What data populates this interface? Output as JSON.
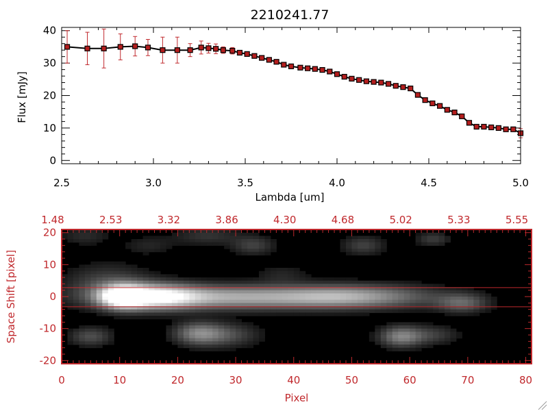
{
  "colors": {
    "red": "#c0282c",
    "black": "#000000",
    "marker_fill": "#b41e1e"
  },
  "chart_data": [
    {
      "type": "line",
      "title": "2210241.77",
      "xlabel": "Lambda [um]",
      "ylabel": "Flux [mJy]",
      "xlim": [
        2.5,
        5.0
      ],
      "ylim": [
        -1,
        41
      ],
      "x_ticks": [
        "2.5",
        "3.0",
        "3.5",
        "4.0",
        "4.5",
        "5.0"
      ],
      "x_tick_values": [
        2.5,
        3.0,
        3.5,
        4.0,
        4.5,
        5.0
      ],
      "y_ticks": [
        "0",
        "10",
        "20",
        "30",
        "40"
      ],
      "y_tick_values": [
        0,
        10,
        20,
        30,
        40
      ],
      "series": [
        {
          "x": [
            2.53,
            2.64,
            2.73,
            2.82,
            2.9,
            2.97,
            3.05,
            3.13,
            3.2,
            3.26,
            3.3,
            3.34,
            3.38,
            3.43,
            3.47,
            3.51,
            3.55,
            3.59,
            3.63,
            3.67,
            3.71,
            3.75,
            3.8,
            3.84,
            3.88,
            3.92,
            3.96,
            4.0,
            4.04,
            4.08,
            4.12,
            4.16,
            4.2,
            4.24,
            4.28,
            4.32,
            4.36,
            4.4,
            4.44,
            4.48,
            4.52,
            4.56,
            4.6,
            4.64,
            4.68,
            4.72,
            4.76,
            4.8,
            4.84,
            4.88,
            4.92,
            4.96,
            5.0
          ],
          "y": [
            35,
            34.5,
            34.5,
            35,
            35.2,
            34.8,
            34,
            34,
            34,
            34.8,
            34.6,
            34.4,
            34,
            33.8,
            33.2,
            32.8,
            32.2,
            31.6,
            31,
            30.4,
            29.5,
            29,
            28.6,
            28.4,
            28.2,
            27.9,
            27.4,
            26.6,
            25.8,
            25.2,
            24.8,
            24.4,
            24.2,
            24,
            23.6,
            23,
            22.6,
            22.2,
            20.2,
            18.6,
            17.6,
            16.8,
            15.6,
            14.8,
            13.6,
            11.6,
            10.4,
            10.4,
            10.2,
            10,
            9.6,
            9.6,
            8.4
          ],
          "yerr": [
            5,
            5,
            6,
            4,
            3,
            2.5,
            4,
            4,
            2,
            2,
            1.5,
            1.5,
            1,
            1,
            0.6,
            0.6,
            0.6,
            0.5,
            0.5,
            0.5,
            0.5,
            0.5,
            0.5,
            0.5,
            0.5,
            0.5,
            0.5,
            0.5,
            0.5,
            0.5,
            0.5,
            0.5,
            0.5,
            0.5,
            0.5,
            0.5,
            0.5,
            0.5,
            0.5,
            0.5,
            0.5,
            0.5,
            0.5,
            0.5,
            0.5,
            0.5,
            0.5,
            0.5,
            0.5,
            0.5,
            0.5,
            0.5,
            1.4
          ]
        }
      ]
    },
    {
      "type": "heatmap",
      "xlabel": "Pixel",
      "ylabel": "Space Shift [pixel]",
      "xlim": [
        0,
        81
      ],
      "ylim": [
        -21,
        21
      ],
      "x_ticks": [
        "0",
        "10",
        "20",
        "30",
        "40",
        "50",
        "60",
        "70",
        "80"
      ],
      "x_tick_values": [
        0,
        10,
        20,
        30,
        40,
        50,
        60,
        70,
        80
      ],
      "top_ticks": [
        "1.48",
        "2.53",
        "3.32",
        "3.86",
        "4.30",
        "4.68",
        "5.02",
        "5.33",
        "5.55"
      ],
      "y_ticks": [
        "20",
        "10",
        "0",
        "-10",
        "-20"
      ],
      "y_tick_values": [
        20,
        10,
        0,
        -10,
        -20
      ],
      "extraction_lines": [
        2.8,
        -3.2
      ],
      "blobs": [
        {
          "cx": 10.5,
          "cy": 0,
          "sx": 2.6,
          "sy": 2.4,
          "a": 1.0
        },
        {
          "cx": 16,
          "cy": 0,
          "sx": 5,
          "sy": 2.6,
          "a": 0.8
        },
        {
          "cx": 30,
          "cy": -0.2,
          "sx": 14,
          "sy": 2.5,
          "a": 0.62
        },
        {
          "cx": 48,
          "cy": 0,
          "sx": 7,
          "sy": 2.4,
          "a": 0.38
        },
        {
          "cx": 58,
          "cy": 0,
          "sx": 7,
          "sy": 2.5,
          "a": 0.18
        },
        {
          "cx": 69,
          "cy": -2,
          "sx": 3,
          "sy": 2,
          "a": 0.32
        },
        {
          "cx": 8,
          "cy": 4,
          "sx": 5,
          "sy": 4,
          "a": 0.22
        },
        {
          "cx": 5,
          "cy": -12.5,
          "sx": 2.5,
          "sy": 2,
          "a": 0.25
        },
        {
          "cx": 23.5,
          "cy": -11.5,
          "sx": 2.8,
          "sy": 2.4,
          "a": 0.38
        },
        {
          "cx": 28,
          "cy": -12,
          "sx": 4,
          "sy": 2.5,
          "a": 0.25
        },
        {
          "cx": 58.5,
          "cy": -12.5,
          "sx": 2.5,
          "sy": 2.2,
          "a": 0.45
        },
        {
          "cx": 64,
          "cy": -12,
          "sx": 3,
          "sy": 2,
          "a": 0.18
        },
        {
          "cx": 33,
          "cy": 16,
          "sx": 2.5,
          "sy": 2,
          "a": 0.2
        },
        {
          "cx": 25,
          "cy": 19,
          "sx": 4,
          "sy": 2,
          "a": 0.15
        },
        {
          "cx": 52,
          "cy": 16,
          "sx": 2.5,
          "sy": 2,
          "a": 0.2
        },
        {
          "cx": 64,
          "cy": 18,
          "sx": 2,
          "sy": 1.5,
          "a": 0.18
        },
        {
          "cx": 4,
          "cy": 19,
          "sx": 3,
          "sy": 2,
          "a": 0.12
        },
        {
          "cx": 38,
          "cy": 7,
          "sx": 3,
          "sy": 2,
          "a": 0.1
        },
        {
          "cx": 15,
          "cy": 16,
          "sx": 3,
          "sy": 2,
          "a": 0.1
        }
      ]
    }
  ]
}
